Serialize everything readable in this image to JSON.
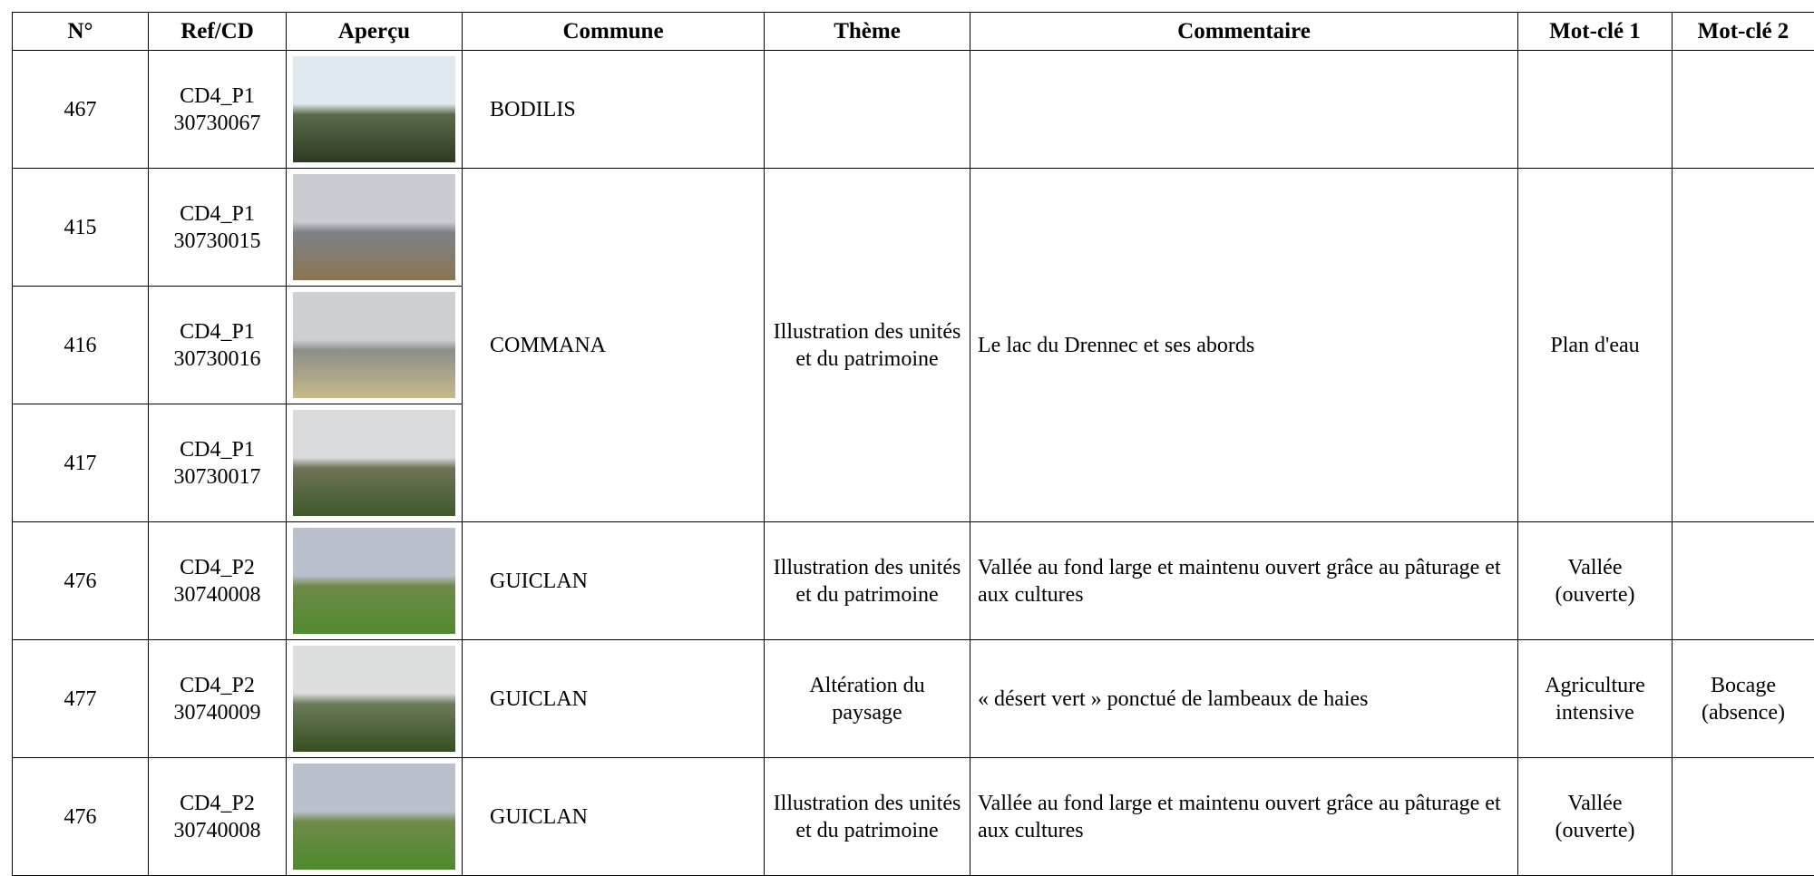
{
  "table": {
    "header": [
      "N°",
      "Ref/CD",
      "Aperçu",
      "Commune",
      "Thème",
      "Commentaire",
      "Mot-clé 1",
      "Mot-clé 2"
    ],
    "rows": [
      {
        "n": "467",
        "ref": [
          "CD4_P1",
          "30730067"
        ],
        "commune": "BODILIS"
      },
      {
        "n": "415",
        "ref": [
          "CD4_P1",
          "30730015"
        ],
        "commune": "COMMANA",
        "theme": "Illustration des unités et du patrimoine",
        "comment": "Le lac du Drennec et ses abords",
        "kw1": "Plan d'eau"
      },
      {
        "n": "416",
        "ref": [
          "CD4_P1",
          "30730016"
        ]
      },
      {
        "n": "417",
        "ref": [
          "CD4_P1",
          "30730017"
        ]
      },
      {
        "n": "476",
        "ref": [
          "CD4_P2",
          "30740008"
        ],
        "commune": "GUICLAN",
        "theme": "Illustration des unités et du patrimoine",
        "comment": "Vallée au fond large et maintenu ouvert grâce au pâturage et aux cultures",
        "kw1": "Vallée (ouverte)"
      },
      {
        "n": "477",
        "ref": [
          "CD4_P2",
          "30740009"
        ],
        "commune": "GUICLAN",
        "theme": "Altération du paysage",
        "comment": "« désert vert » ponctué de lambeaux de haies",
        "kw1": "Agriculture intensive",
        "kw2": "Bocage (absence)"
      },
      {
        "n": "476",
        "ref": [
          "CD4_P2",
          "30740008"
        ],
        "commune": "GUICLAN",
        "theme": "Illustration des unités et du patrimoine",
        "comment": "Vallée au fond large et maintenu ouvert grâce au pâturage et aux cultures",
        "kw1": "Vallée (ouverte)"
      }
    ]
  }
}
